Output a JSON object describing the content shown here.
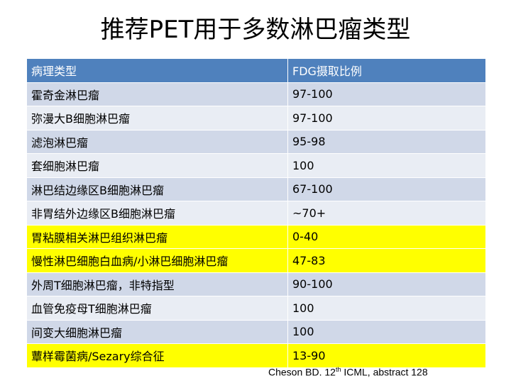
{
  "title": "推荐PET用于多数淋巴瘤类型",
  "table": {
    "headers": [
      "病理类型",
      "FDG摄取比例"
    ],
    "rows": [
      {
        "type": "霍奇金淋巴瘤",
        "fdg": "97-100",
        "highlight": false
      },
      {
        "type": "弥漫大B细胞淋巴瘤",
        "fdg": "97-100",
        "highlight": false
      },
      {
        "type": "滤泡淋巴瘤",
        "fdg": "95-98",
        "highlight": false
      },
      {
        "type": "套细胞淋巴瘤",
        "fdg": "100",
        "highlight": false
      },
      {
        "type": "淋巴结边缘区B细胞淋巴瘤",
        "fdg": "67-100",
        "highlight": false
      },
      {
        "type": "非胃结外边缘区B细胞淋巴瘤",
        "fdg": "~70+",
        "highlight": false
      },
      {
        "type": "胃粘膜相关淋巴组织淋巴瘤",
        "fdg": "0-40",
        "highlight": true
      },
      {
        "type": "慢性淋巴细胞白血病/小淋巴细胞淋巴瘤",
        "fdg": "47-83",
        "highlight": true
      },
      {
        "type": "外周T细胞淋巴瘤，非特指型",
        "fdg": "90-100",
        "highlight": false
      },
      {
        "type": "血管免疫母T细胞淋巴瘤",
        "fdg": "100",
        "highlight": false
      },
      {
        "type": "间变大细胞淋巴瘤",
        "fdg": "100",
        "highlight": false
      },
      {
        "type": "蕈样霉菌病/Sezary综合征",
        "fdg": "13-90",
        "highlight": true
      }
    ]
  },
  "citation": {
    "prefix": "Cheson BD. 12",
    "sup": "th",
    "suffix": " ICML, abstract 128"
  },
  "colors": {
    "header_bg": "#4f81bd",
    "row_dark": "#d0d8e8",
    "row_light": "#e9edf4",
    "highlight": "#ffff00"
  }
}
